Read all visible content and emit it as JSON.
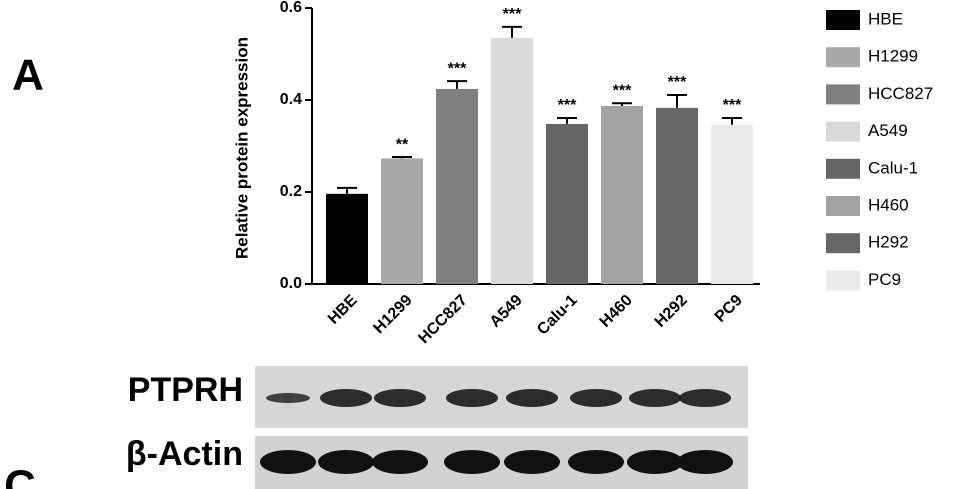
{
  "panel_labels": [
    "A",
    "C"
  ],
  "blot_labels": [
    "PTPRH",
    "β-Actin"
  ],
  "chart_data": {
    "type": "bar",
    "y_label": "Relative protein expression",
    "categories": [
      "HBE",
      "H1299",
      "HCC827",
      "A549",
      "Calu-1",
      "H460",
      "H292",
      "PC9"
    ],
    "values": [
      0.196,
      0.273,
      0.424,
      0.535,
      0.348,
      0.387,
      0.383,
      0.346
    ],
    "errors": [
      0.013,
      0.003,
      0.017,
      0.024,
      0.013,
      0.006,
      0.028,
      0.015
    ],
    "significance": [
      null,
      "**",
      "***",
      "***",
      "***",
      "***",
      "***",
      "***"
    ],
    "colors": [
      "#000000",
      "#a8a8a8",
      "#808080",
      "#d9d9d9",
      "#666666",
      "#a3a3a3",
      "#676767",
      "#e9e9e9"
    ],
    "ylim": [
      0,
      0.6
    ],
    "yticks": [
      {
        "value": 0,
        "label": "0.0"
      },
      0.2,
      0.4,
      0.6
    ]
  }
}
